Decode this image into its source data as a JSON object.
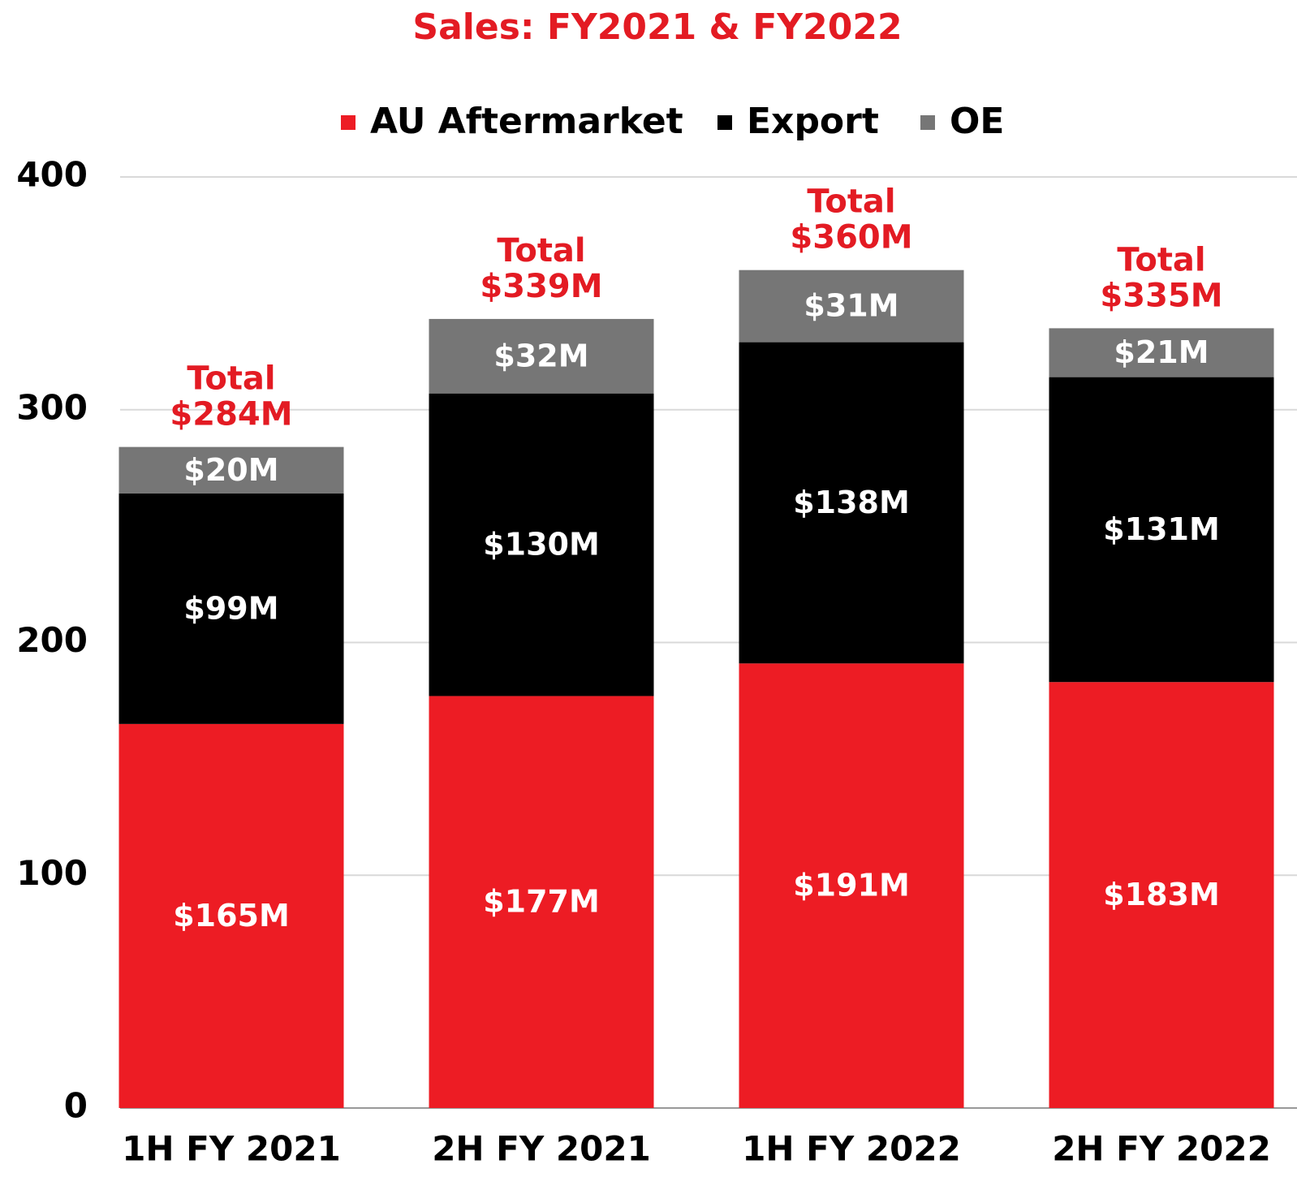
{
  "chart_data": {
    "type": "stacked_bar",
    "title": "Sales: FY2021 & FY2022",
    "categories": [
      "1H FY 2021",
      "2H FY 2021",
      "1H FY 2022",
      "2H FY 2022"
    ],
    "series": [
      {
        "name": "AU Aftermarket",
        "color": "#ed1c24",
        "values": [
          165,
          177,
          191,
          183
        ],
        "value_labels": [
          "$165M",
          "$177M",
          "$191M",
          "$183M"
        ]
      },
      {
        "name": "Export",
        "color": "#000000",
        "values": [
          99,
          130,
          138,
          131
        ],
        "value_labels": [
          "$99M",
          "$130M",
          "$138M",
          "$131M"
        ]
      },
      {
        "name": "OE",
        "color": "#767676",
        "values": [
          20,
          32,
          31,
          21
        ],
        "value_labels": [
          "$20M",
          "$32M",
          "$31M",
          "$21M"
        ]
      }
    ],
    "total_label": "Total",
    "totals": [
      284,
      339,
      360,
      335
    ],
    "total_value_labels": [
      "$284M",
      "$339M",
      "$360M",
      "$335M"
    ],
    "ylim": [
      0,
      400
    ],
    "yticks": [
      0,
      100,
      200,
      300,
      400
    ],
    "grid": true,
    "legend": "top"
  }
}
